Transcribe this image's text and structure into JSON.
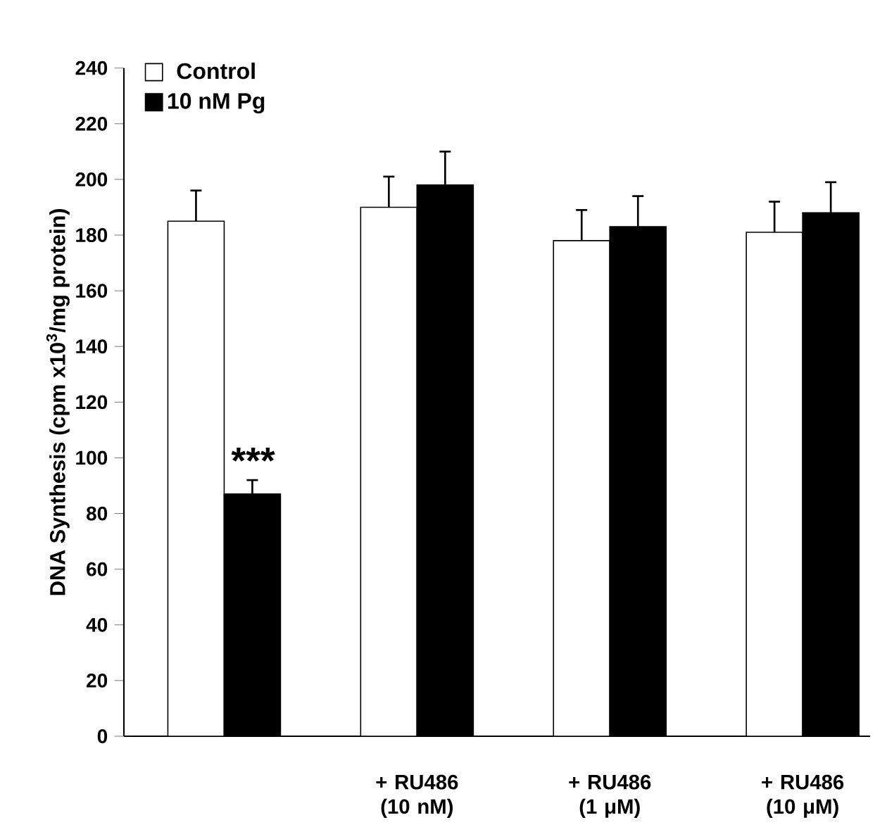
{
  "chart_data": {
    "type": "bar",
    "ylabel": "DNA Synthesis (cpm x10$^{3}$/mg protein)",
    "categories": [
      null,
      "+ RU486 (10 nM)",
      "+ RU486 (1 μM)",
      "+ RU486 (10 μM)"
    ],
    "series": [
      {
        "name": "Control",
        "color": "#ffffff",
        "values": [
          185,
          190,
          178,
          181
        ],
        "errors": [
          11,
          11,
          11,
          11
        ]
      },
      {
        "name": "10 nM Pg",
        "color": "#000000",
        "values": [
          87,
          198,
          183,
          188
        ],
        "errors": [
          5,
          12,
          11,
          11
        ]
      }
    ],
    "ylim": [
      0,
      240
    ],
    "yticks": [
      0,
      20,
      40,
      60,
      80,
      100,
      120,
      140,
      160,
      180,
      200,
      220,
      240
    ],
    "annotations": [
      "***"
    ],
    "legend": "top left",
    "grid": false
  }
}
